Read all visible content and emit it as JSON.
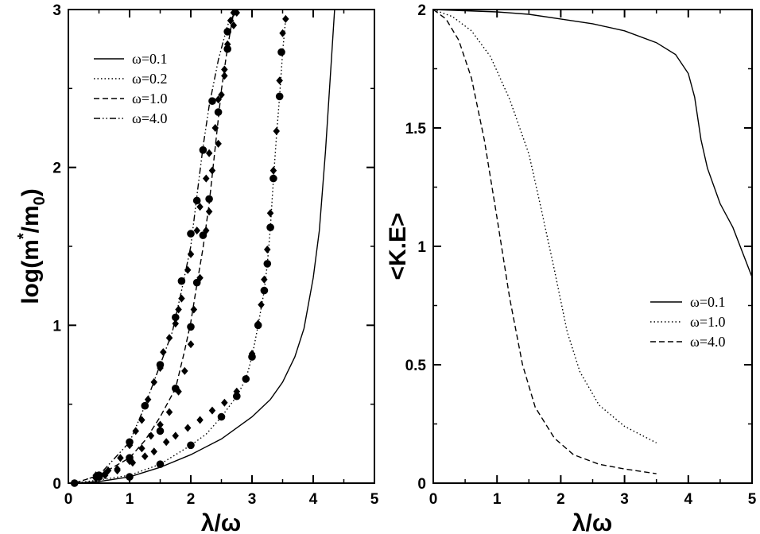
{
  "chart_data": [
    {
      "type": "line",
      "xlabel": "λ/ω",
      "ylabel": "log(m*/m0)",
      "ylabel_parts": {
        "base": "log(m",
        "sup": "*",
        "mid": "/m",
        "sub": "0",
        "end": ")"
      },
      "xlim": [
        0,
        5
      ],
      "ylim": [
        0,
        3
      ],
      "x_ticks": [
        "0",
        "1",
        "2",
        "3",
        "4",
        "5"
      ],
      "y_ticks": [
        "0",
        "1",
        "2",
        "3"
      ],
      "legend_position": "top-left",
      "grid": false,
      "series": [
        {
          "name": "ω=0.1",
          "style": "solid",
          "x": [
            0.1,
            0.5,
            1.0,
            1.5,
            2.0,
            2.5,
            3.0,
            3.3,
            3.5,
            3.7,
            3.85,
            4.0,
            4.1,
            4.2,
            4.3,
            4.35
          ],
          "y": [
            0,
            0.01,
            0.04,
            0.1,
            0.18,
            0.28,
            0.42,
            0.53,
            0.64,
            0.8,
            0.98,
            1.3,
            1.6,
            2.1,
            2.7,
            3.0
          ]
        },
        {
          "name": "ω=0.2",
          "style": "dotted",
          "x": [
            0.1,
            0.5,
            1.0,
            1.5,
            2.0,
            2.25,
            2.5,
            2.75,
            2.9,
            3.0,
            3.1,
            3.2,
            3.25,
            3.3,
            3.35,
            3.4,
            3.45,
            3.5,
            3.55
          ],
          "y": [
            0,
            0.02,
            0.05,
            0.12,
            0.24,
            0.31,
            0.42,
            0.55,
            0.66,
            0.8,
            1.0,
            1.22,
            1.39,
            1.62,
            1.92,
            2.2,
            2.45,
            2.73,
            2.94
          ]
        },
        {
          "name": "ω=1.0",
          "style": "dashed",
          "x": [
            0.1,
            0.5,
            1.0,
            1.25,
            1.5,
            1.75,
            1.9,
            2.0,
            2.1,
            2.2,
            2.3,
            2.4,
            2.5,
            2.6,
            2.7
          ],
          "y": [
            0,
            0.05,
            0.16,
            0.27,
            0.42,
            0.6,
            0.84,
            1.02,
            1.26,
            1.49,
            1.77,
            2.13,
            2.49,
            2.76,
            2.98
          ]
        },
        {
          "name": "ω=4.0",
          "style": "dashdotdot",
          "x": [
            0.1,
            0.5,
            1.0,
            1.25,
            1.5,
            1.7,
            1.85,
            2.0,
            2.1,
            2.2,
            2.3,
            2.45,
            2.6,
            2.75
          ],
          "y": [
            0,
            0.05,
            0.26,
            0.49,
            0.75,
            0.96,
            1.22,
            1.5,
            1.82,
            2.13,
            2.39,
            2.68,
            2.9,
            3.0
          ]
        }
      ],
      "markers": {
        "circles": [
          [
            0.1,
            0
          ],
          [
            0.5,
            0.04
          ],
          [
            1.0,
            0.04
          ],
          [
            1.5,
            0.12
          ],
          [
            2.0,
            0.24
          ],
          [
            2.5,
            0.42
          ],
          [
            2.75,
            0.55
          ],
          [
            2.9,
            0.66
          ],
          [
            3.0,
            0.8
          ],
          [
            3.1,
            1.0
          ],
          [
            3.2,
            1.22
          ],
          [
            3.25,
            1.39
          ],
          [
            3.3,
            1.62
          ],
          [
            3.35,
            1.93
          ],
          [
            3.45,
            2.45
          ],
          [
            3.48,
            2.73
          ],
          [
            0.5,
            0.05
          ],
          [
            1.0,
            0.16
          ],
          [
            1.5,
            0.33
          ],
          [
            1.75,
            0.6
          ],
          [
            2.0,
            0.99
          ],
          [
            2.1,
            1.27
          ],
          [
            2.2,
            1.57
          ],
          [
            2.3,
            1.8
          ],
          [
            2.45,
            2.35
          ],
          [
            2.6,
            2.75
          ],
          [
            0.5,
            0.04
          ],
          [
            1.0,
            0.26
          ],
          [
            1.25,
            0.49
          ],
          [
            1.5,
            0.75
          ],
          [
            1.75,
            1.05
          ],
          [
            1.85,
            1.28
          ],
          [
            2.0,
            1.58
          ],
          [
            2.1,
            1.79
          ],
          [
            2.2,
            2.11
          ],
          [
            2.35,
            2.42
          ],
          [
            2.6,
            2.86
          ]
        ],
        "diamonds": [
          [
            0.45,
            0.03
          ],
          [
            0.6,
            0.05
          ],
          [
            0.8,
            0.09
          ],
          [
            1.05,
            0.13
          ],
          [
            1.25,
            0.17
          ],
          [
            1.4,
            0.2
          ],
          [
            1.6,
            0.26
          ],
          [
            1.75,
            0.3
          ],
          [
            1.95,
            0.35
          ],
          [
            2.15,
            0.4
          ],
          [
            2.35,
            0.46
          ],
          [
            2.55,
            0.51
          ],
          [
            2.75,
            0.58
          ],
          [
            2.9,
            0.66
          ],
          [
            3.0,
            0.82
          ],
          [
            3.1,
            1.01
          ],
          [
            3.15,
            1.13
          ],
          [
            3.2,
            1.29
          ],
          [
            3.25,
            1.48
          ],
          [
            3.3,
            1.71
          ],
          [
            3.35,
            1.98
          ],
          [
            3.4,
            2.23
          ],
          [
            3.45,
            2.55
          ],
          [
            3.5,
            2.85
          ],
          [
            3.55,
            2.94
          ],
          [
            0.45,
            0.05
          ],
          [
            0.6,
            0.06
          ],
          [
            0.8,
            0.08
          ],
          [
            1.0,
            0.14
          ],
          [
            1.2,
            0.22
          ],
          [
            1.35,
            0.3
          ],
          [
            1.5,
            0.37
          ],
          [
            1.65,
            0.45
          ],
          [
            1.8,
            0.58
          ],
          [
            1.9,
            0.71
          ],
          [
            2.0,
            0.88
          ],
          [
            2.05,
            1.1
          ],
          [
            2.15,
            1.3
          ],
          [
            2.25,
            1.6
          ],
          [
            2.3,
            1.72
          ],
          [
            2.35,
            1.98
          ],
          [
            2.45,
            2.15
          ],
          [
            2.5,
            2.46
          ],
          [
            2.55,
            2.62
          ],
          [
            2.6,
            2.78
          ],
          [
            2.65,
            2.93
          ],
          [
            2.7,
            2.98
          ],
          [
            0.45,
            0.04
          ],
          [
            0.65,
            0.08
          ],
          [
            0.85,
            0.16
          ],
          [
            1.0,
            0.24
          ],
          [
            1.1,
            0.33
          ],
          [
            1.2,
            0.4
          ],
          [
            1.3,
            0.53
          ],
          [
            1.4,
            0.64
          ],
          [
            1.5,
            0.73
          ],
          [
            1.55,
            0.83
          ],
          [
            1.65,
            0.92
          ],
          [
            1.75,
            1.01
          ],
          [
            1.8,
            1.1
          ],
          [
            1.85,
            1.17
          ],
          [
            1.95,
            1.35
          ],
          [
            2.0,
            1.45
          ],
          [
            2.1,
            1.6
          ],
          [
            2.15,
            1.75
          ],
          [
            2.25,
            1.93
          ],
          [
            2.3,
            2.09
          ],
          [
            2.4,
            2.25
          ],
          [
            2.45,
            2.43
          ],
          [
            2.55,
            2.58
          ],
          [
            2.6,
            2.75
          ],
          [
            2.7,
            2.9
          ],
          [
            2.75,
            2.98
          ]
        ]
      }
    },
    {
      "type": "line",
      "xlabel": "λ/ω",
      "ylabel": "<K.E>",
      "xlim": [
        0,
        5
      ],
      "ylim": [
        0,
        2
      ],
      "x_ticks": [
        "0",
        "1",
        "2",
        "3",
        "4",
        "5"
      ],
      "y_ticks": [
        "0",
        "0.5",
        "1",
        "1.5",
        "2"
      ],
      "legend_position": "center-right",
      "grid": false,
      "series": [
        {
          "name": "ω=0.1",
          "style": "solid",
          "x": [
            0,
            0.5,
            1.0,
            1.5,
            2.0,
            2.5,
            3.0,
            3.5,
            3.8,
            4.0,
            4.1,
            4.2,
            4.3,
            4.5,
            4.7,
            5.0
          ],
          "y": [
            2.0,
            1.995,
            1.99,
            1.98,
            1.96,
            1.94,
            1.91,
            1.86,
            1.81,
            1.73,
            1.63,
            1.45,
            1.33,
            1.18,
            1.08,
            0.87
          ]
        },
        {
          "name": "ω=1.0",
          "style": "dotted",
          "x": [
            0,
            0.3,
            0.6,
            0.9,
            1.2,
            1.5,
            1.7,
            1.9,
            2.1,
            2.3,
            2.6,
            3.0,
            3.5
          ],
          "y": [
            2.0,
            1.97,
            1.91,
            1.8,
            1.62,
            1.39,
            1.15,
            0.9,
            0.64,
            0.47,
            0.33,
            0.24,
            0.17
          ]
        },
        {
          "name": "ω=4.0",
          "style": "dashed",
          "x": [
            0,
            0.2,
            0.4,
            0.6,
            0.8,
            1.0,
            1.2,
            1.4,
            1.6,
            1.9,
            2.2,
            2.6,
            3.0,
            3.5
          ],
          "y": [
            2.0,
            1.96,
            1.87,
            1.71,
            1.45,
            1.12,
            0.78,
            0.5,
            0.32,
            0.19,
            0.12,
            0.08,
            0.06,
            0.04
          ]
        }
      ]
    }
  ]
}
